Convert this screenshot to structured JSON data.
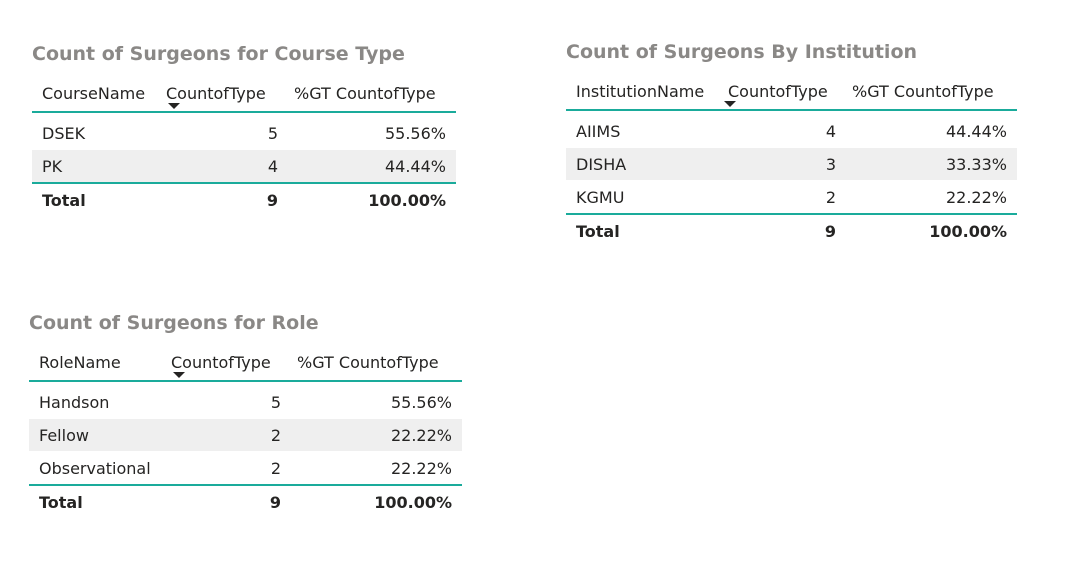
{
  "visuals": {
    "course": {
      "title": "Count of Surgeons for Course Type",
      "headers": [
        "CourseName",
        "CountofType",
        "%GT CountofType"
      ],
      "rows": [
        {
          "name": "DSEK",
          "count": "5",
          "pct": "55.56%"
        },
        {
          "name": "PK",
          "count": "4",
          "pct": "44.44%"
        }
      ],
      "total": {
        "name": "Total",
        "count": "9",
        "pct": "100.00%"
      }
    },
    "institution": {
      "title": "Count of Surgeons By Institution",
      "headers": [
        "InstitutionName",
        "CountofType",
        "%GT CountofType"
      ],
      "rows": [
        {
          "name": "AIIMS",
          "count": "4",
          "pct": "44.44%"
        },
        {
          "name": "DISHA",
          "count": "3",
          "pct": "33.33%"
        },
        {
          "name": "KGMU",
          "count": "2",
          "pct": "22.22%"
        }
      ],
      "total": {
        "name": "Total",
        "count": "9",
        "pct": "100.00%"
      }
    },
    "role": {
      "title": "Count of Surgeons for Role",
      "headers": [
        "RoleName",
        "CountofType",
        "%GT CountofType"
      ],
      "rows": [
        {
          "name": "Handson",
          "count": "5",
          "pct": "55.56%"
        },
        {
          "name": "Fellow",
          "count": "2",
          "pct": "22.22%"
        },
        {
          "name": "Observational",
          "count": "2",
          "pct": "22.22%"
        }
      ],
      "total": {
        "name": "Total",
        "count": "9",
        "pct": "100.00%"
      }
    }
  },
  "colors": {
    "accent": "#1aab9b",
    "title_text": "#8a8886",
    "body_text": "#252423",
    "alt_row": "#efefef"
  },
  "icons": {
    "sort": "sort-descending-caret-icon"
  }
}
